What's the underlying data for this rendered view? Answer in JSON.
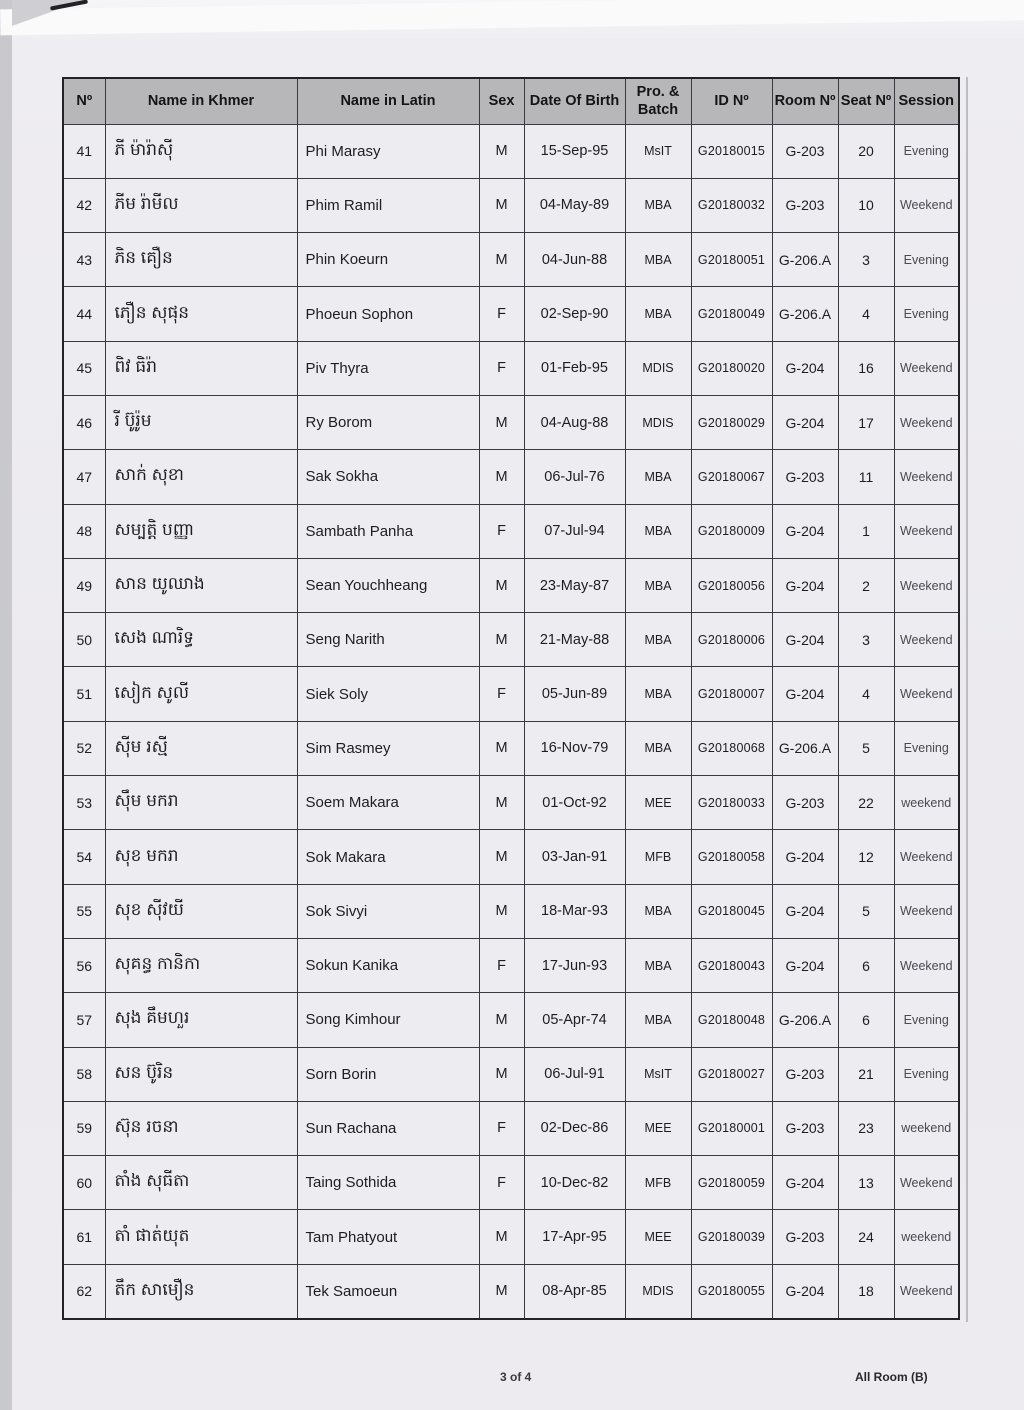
{
  "table": {
    "columns": [
      {
        "key": "no",
        "label": "Nº"
      },
      {
        "key": "name_khmer",
        "label": "Name in Khmer"
      },
      {
        "key": "name_latin",
        "label": "Name in Latin"
      },
      {
        "key": "sex",
        "label": "Sex"
      },
      {
        "key": "dob",
        "label": "Date Of Birth"
      },
      {
        "key": "pro_batch",
        "label": "Pro. & Batch"
      },
      {
        "key": "id_no",
        "label": "ID Nº"
      },
      {
        "key": "room_no",
        "label": "Room Nº"
      },
      {
        "key": "seat_no",
        "label": "Seat Nº"
      },
      {
        "key": "session",
        "label": "Session"
      }
    ],
    "rows": [
      {
        "no": "41",
        "name_khmer": "ភី ម៉ារ៉ាស៊ី",
        "name_latin": "Phi  Marasy",
        "sex": "M",
        "dob": "15-Sep-95",
        "pro_batch": "MsIT",
        "id_no": "G20180015",
        "room_no": "G-203",
        "seat_no": "20",
        "session": "Evening"
      },
      {
        "no": "42",
        "name_khmer": "ភីម រ៉ាមីល",
        "name_latin": "Phim  Ramil",
        "sex": "M",
        "dob": "04-May-89",
        "pro_batch": "MBA",
        "id_no": "G20180032",
        "room_no": "G-203",
        "seat_no": "10",
        "session": "Weekend"
      },
      {
        "no": "43",
        "name_khmer": "ភិន គឿន",
        "name_latin": "Phin  Koeurn",
        "sex": "M",
        "dob": "04-Jun-88",
        "pro_batch": "MBA",
        "id_no": "G20180051",
        "room_no": "G-206.A",
        "seat_no": "3",
        "session": "Evening"
      },
      {
        "no": "44",
        "name_khmer": "ភឿន សុផុន",
        "name_latin": "Phoeun  Sophon",
        "sex": "F",
        "dob": "02-Sep-90",
        "pro_batch": "MBA",
        "id_no": "G20180049",
        "room_no": "G-206.A",
        "seat_no": "4",
        "session": "Evening"
      },
      {
        "no": "45",
        "name_khmer": "ពិវ ធិរ៉ា",
        "name_latin": "Piv  Thyra",
        "sex": "F",
        "dob": "01-Feb-95",
        "pro_batch": "MDIS",
        "id_no": "G20180020",
        "room_no": "G-204",
        "seat_no": "16",
        "session": "Weekend"
      },
      {
        "no": "46",
        "name_khmer": "រី ប៊ូរ៉ូម",
        "name_latin": "Ry  Borom",
        "sex": "M",
        "dob": "04-Aug-88",
        "pro_batch": "MDIS",
        "id_no": "G20180029",
        "room_no": "G-204",
        "seat_no": "17",
        "session": "Weekend"
      },
      {
        "no": "47",
        "name_khmer": "សាក់ សុខា",
        "name_latin": "Sak  Sokha",
        "sex": "M",
        "dob": "06-Jul-76",
        "pro_batch": "MBA",
        "id_no": "G20180067",
        "room_no": "G-203",
        "seat_no": "11",
        "session": "Weekend"
      },
      {
        "no": "48",
        "name_khmer": "សម្បត្តិ បញ្ញា",
        "name_latin": "Sambath  Panha",
        "sex": "F",
        "dob": "07-Jul-94",
        "pro_batch": "MBA",
        "id_no": "G20180009",
        "room_no": "G-204",
        "seat_no": "1",
        "session": "Weekend"
      },
      {
        "no": "49",
        "name_khmer": "សាន យូឈាង",
        "name_latin": "Sean  Youchheang",
        "sex": "M",
        "dob": "23-May-87",
        "pro_batch": "MBA",
        "id_no": "G20180056",
        "room_no": "G-204",
        "seat_no": "2",
        "session": "Weekend"
      },
      {
        "no": "50",
        "name_khmer": "សេង ណារិទ្ធ",
        "name_latin": "Seng   Narith",
        "sex": "M",
        "dob": "21-May-88",
        "pro_batch": "MBA",
        "id_no": "G20180006",
        "room_no": "G-204",
        "seat_no": "3",
        "session": "Weekend"
      },
      {
        "no": "51",
        "name_khmer": "សៀក សូលី",
        "name_latin": "Siek  Soly",
        "sex": "F",
        "dob": "05-Jun-89",
        "pro_batch": "MBA",
        "id_no": "G20180007",
        "room_no": "G-204",
        "seat_no": "4",
        "session": "Weekend"
      },
      {
        "no": "52",
        "name_khmer": "ស៊ីម រស្មី",
        "name_latin": "Sim  Rasmey",
        "sex": "M",
        "dob": "16-Nov-79",
        "pro_batch": "MBA",
        "id_no": "G20180068",
        "room_no": "G-206.A",
        "seat_no": "5",
        "session": "Evening"
      },
      {
        "no": "53",
        "name_khmer": "ស៊ឹម មករា",
        "name_latin": "Soem  Makara",
        "sex": "M",
        "dob": "01-Oct-92",
        "pro_batch": "MEE",
        "id_no": "G20180033",
        "room_no": "G-203",
        "seat_no": "22",
        "session": "weekend"
      },
      {
        "no": "54",
        "name_khmer": "សុខ មករា",
        "name_latin": "Sok  Makara",
        "sex": "M",
        "dob": "03-Jan-91",
        "pro_batch": "MFB",
        "id_no": "G20180058",
        "room_no": "G-204",
        "seat_no": "12",
        "session": "Weekend"
      },
      {
        "no": "55",
        "name_khmer": "សុខ ស៊ីវយី",
        "name_latin": "Sok  Sivyi",
        "sex": "M",
        "dob": "18-Mar-93",
        "pro_batch": "MBA",
        "id_no": "G20180045",
        "room_no": "G-204",
        "seat_no": "5",
        "session": "Weekend"
      },
      {
        "no": "56",
        "name_khmer": "សុគន្ធ កានិកា",
        "name_latin": "Sokun  Kanika",
        "sex": "F",
        "dob": "17-Jun-93",
        "pro_batch": "MBA",
        "id_no": "G20180043",
        "room_no": "G-204",
        "seat_no": "6",
        "session": "Weekend"
      },
      {
        "no": "57",
        "name_khmer": "សុង គឹមហួរ",
        "name_latin": "Song  Kimhour",
        "sex": "M",
        "dob": "05-Apr-74",
        "pro_batch": "MBA",
        "id_no": "G20180048",
        "room_no": "G-206.A",
        "seat_no": "6",
        "session": "Evening"
      },
      {
        "no": "58",
        "name_khmer": "សន ប៊ូរិន",
        "name_latin": "Sorn  Borin",
        "sex": "M",
        "dob": "06-Jul-91",
        "pro_batch": "MsIT",
        "id_no": "G20180027",
        "room_no": "G-203",
        "seat_no": "21",
        "session": "Evening"
      },
      {
        "no": "59",
        "name_khmer": "ស៊ុន រចនា",
        "name_latin": "Sun  Rachana",
        "sex": "F",
        "dob": "02-Dec-86",
        "pro_batch": "MEE",
        "id_no": "G20180001",
        "room_no": "G-203",
        "seat_no": "23",
        "session": "weekend"
      },
      {
        "no": "60",
        "name_khmer": "តាំង សុធីតា",
        "name_latin": "Taing  Sothida",
        "sex": "F",
        "dob": "10-Dec-82",
        "pro_batch": "MFB",
        "id_no": "G20180059",
        "room_no": "G-204",
        "seat_no": "13",
        "session": "Weekend"
      },
      {
        "no": "61",
        "name_khmer": "តាំ ផាត់យុត",
        "name_latin": "Tam  Phatyout",
        "sex": "M",
        "dob": "17-Apr-95",
        "pro_batch": "MEE",
        "id_no": "G20180039",
        "room_no": "G-203",
        "seat_no": "24",
        "session": "weekend"
      },
      {
        "no": "62",
        "name_khmer": "តឹក សាមឿន",
        "name_latin": "Tek  Samoeun",
        "sex": "M",
        "dob": "08-Apr-85",
        "pro_batch": "MDIS",
        "id_no": "G20180055",
        "room_no": "G-204",
        "seat_no": "18",
        "session": "Weekend"
      }
    ]
  },
  "footer": {
    "page_label": "3 of 4",
    "room_label": "All Room (B)"
  }
}
